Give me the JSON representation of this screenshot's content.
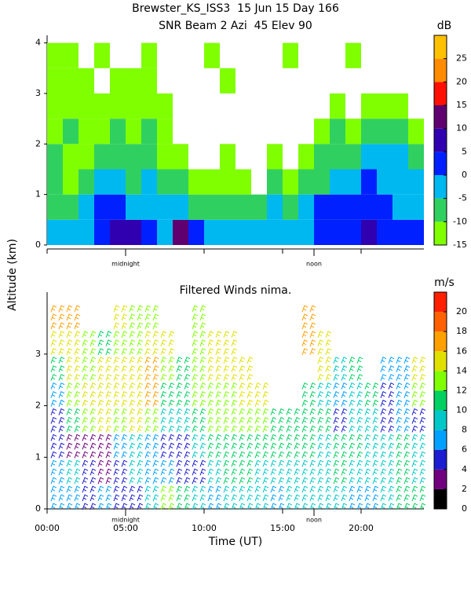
{
  "chart_data": [
    {
      "type": "heatmap",
      "title": "Brewster_KS_ISS3  15 Jun 15 Day 166",
      "subtitle": "SNR Beam 2 Azi  45 Elev 90",
      "y_label": "Altitude (km)",
      "x": [
        0.5,
        1.5,
        2.5,
        3.5,
        4.5,
        5.5,
        6.5,
        7.5,
        8.5,
        9.5,
        10.5,
        11.5,
        12.5,
        13.5,
        14.5,
        15.5,
        16.5,
        17.5,
        18.5,
        19.5,
        20.5,
        21.5,
        22.5,
        23.5
      ],
      "altitudes": [
        0.25,
        0.75,
        1.25,
        1.75,
        2.25,
        2.75,
        3.25,
        3.75
      ],
      "values": [
        [
          -5,
          -5,
          -5,
          0,
          5,
          5,
          0,
          -5,
          10,
          0,
          -5,
          -5,
          -5,
          -5,
          -5,
          -5,
          -5,
          0,
          0,
          0,
          5,
          0,
          0,
          0
        ],
        [
          -10,
          -10,
          -5,
          0,
          0,
          -5,
          -5,
          -5,
          -5,
          -10,
          -10,
          -10,
          -10,
          -10,
          -5,
          -10,
          -5,
          0,
          0,
          0,
          0,
          0,
          -5,
          -5
        ],
        [
          -10,
          -15,
          -10,
          -5,
          -5,
          -10,
          -5,
          -10,
          -10,
          -15,
          -15,
          -15,
          -15,
          null,
          -10,
          -15,
          -10,
          -10,
          -5,
          -5,
          0,
          -5,
          -5,
          -5
        ],
        [
          -10,
          -15,
          -15,
          -10,
          -10,
          -10,
          -10,
          -15,
          -15,
          null,
          null,
          -15,
          null,
          null,
          -15,
          null,
          -15,
          -10,
          -10,
          -10,
          -5,
          -5,
          -5,
          -10
        ],
        [
          -15,
          -10,
          -15,
          -15,
          -10,
          -15,
          -10,
          -15,
          null,
          null,
          null,
          null,
          null,
          null,
          null,
          null,
          null,
          -15,
          -10,
          -15,
          -10,
          -10,
          -10,
          -15
        ],
        [
          -15,
          -15,
          -15,
          -15,
          -15,
          -15,
          -15,
          -15,
          null,
          null,
          null,
          null,
          null,
          null,
          null,
          null,
          null,
          null,
          -15,
          null,
          -15,
          -15,
          -15,
          null
        ],
        [
          -15,
          -15,
          -15,
          null,
          -15,
          -15,
          -15,
          null,
          null,
          null,
          null,
          -15,
          null,
          null,
          null,
          null,
          null,
          null,
          null,
          null,
          null,
          null,
          null,
          null
        ],
        [
          -15,
          -15,
          null,
          -15,
          null,
          null,
          -15,
          null,
          null,
          null,
          -15,
          null,
          null,
          null,
          null,
          -15,
          null,
          null,
          null,
          -15,
          null,
          null,
          null,
          null
        ]
      ],
      "xlim": [
        0,
        24
      ],
      "xticks": [
        0,
        5,
        10,
        15,
        20
      ],
      "ylim": [
        0,
        4.15
      ],
      "yticks": [
        0,
        1,
        2,
        3,
        4
      ],
      "annotations": [
        {
          "text": "midnight",
          "x": 5
        },
        {
          "text": "noon",
          "x": 17
        }
      ],
      "colorbar": {
        "label": "dB",
        "lim": [
          -15,
          30
        ],
        "ticks": [
          -15,
          -10,
          -5,
          0,
          5,
          10,
          15,
          20,
          25
        ],
        "colors": [
          "#80ff00",
          "#30d060",
          "#00b8f0",
          "#0020ff",
          "#3000b0",
          "#600070",
          "#ff1000",
          "#ff8c00",
          "#ffc000"
        ]
      }
    },
    {
      "type": "barbs",
      "title": "Filtered Winds nima.",
      "x_label": "Time (UT)",
      "x": [
        0.5,
        1.5,
        2.5,
        3.5,
        4.5,
        5.5,
        6.5,
        7.5,
        8.5,
        9.5,
        10.5,
        11.5,
        12.5,
        13.5,
        14.5,
        15.5,
        16.5,
        17.5,
        18.5,
        19.5,
        20.5,
        21.5,
        22.5,
        23.5
      ],
      "altitudes": [
        0.25,
        0.75,
        1.25,
        1.75,
        2.25,
        2.75,
        3.25,
        3.75
      ],
      "values": [
        [
          6,
          6,
          4,
          6,
          4,
          4,
          8,
          12,
          10,
          8,
          6,
          8,
          8,
          8,
          6,
          8,
          8,
          8,
          8,
          6,
          6,
          8,
          10,
          10
        ],
        [
          6,
          8,
          4,
          2,
          4,
          8,
          6,
          6,
          4,
          4,
          8,
          10,
          10,
          8,
          8,
          8,
          8,
          8,
          10,
          8,
          8,
          8,
          10,
          8
        ],
        [
          4,
          2,
          2,
          2,
          6,
          8,
          6,
          4,
          4,
          8,
          10,
          10,
          10,
          10,
          10,
          10,
          10,
          8,
          10,
          10,
          8,
          8,
          10,
          8
        ],
        [
          4,
          10,
          12,
          14,
          12,
          14,
          12,
          8,
          8,
          10,
          12,
          12,
          12,
          12,
          10,
          10,
          10,
          10,
          4,
          8,
          8,
          4,
          6,
          4
        ],
        [
          6,
          12,
          14,
          14,
          14,
          14,
          16,
          10,
          10,
          12,
          12,
          12,
          14,
          14,
          null,
          null,
          10,
          8,
          6,
          8,
          10,
          4,
          6,
          12
        ],
        [
          10,
          14,
          12,
          14,
          14,
          14,
          16,
          12,
          10,
          12,
          14,
          14,
          14,
          null,
          null,
          null,
          null,
          14,
          8,
          10,
          null,
          6,
          6,
          14
        ],
        [
          14,
          14,
          12,
          10,
          12,
          12,
          14,
          14,
          null,
          12,
          14,
          14,
          null,
          null,
          null,
          null,
          16,
          14,
          null,
          null,
          null,
          null,
          null,
          null
        ],
        [
          16,
          16,
          null,
          null,
          14,
          12,
          12,
          null,
          null,
          12,
          null,
          null,
          null,
          null,
          null,
          null,
          16,
          null,
          null,
          null,
          null,
          null,
          null,
          null
        ]
      ],
      "xlim": [
        0,
        24
      ],
      "xticks": [
        {
          "value": 0,
          "label": "00:00"
        },
        {
          "value": 5,
          "label": "05:00"
        },
        {
          "value": 10,
          "label": "10:00"
        },
        {
          "value": 15,
          "label": "15:00"
        },
        {
          "value": 20,
          "label": "20:00"
        }
      ],
      "ylim": [
        0,
        4.2
      ],
      "yticks": [
        0,
        1,
        2,
        3
      ],
      "annotations": [
        {
          "text": "midnight",
          "x": 5
        },
        {
          "text": "noon",
          "x": 17
        }
      ],
      "colorbar": {
        "label": "m/s",
        "lim": [
          0,
          22
        ],
        "ticks": [
          0,
          2,
          4,
          6,
          8,
          10,
          12,
          14,
          16,
          18,
          20
        ],
        "colors": [
          "#000000",
          "#70007f",
          "#1c1cd0",
          "#00a0ff",
          "#00c8c8",
          "#00d060",
          "#80ff00",
          "#e0e000",
          "#ffa000",
          "#ff6000",
          "#ff2000"
        ]
      }
    }
  ]
}
